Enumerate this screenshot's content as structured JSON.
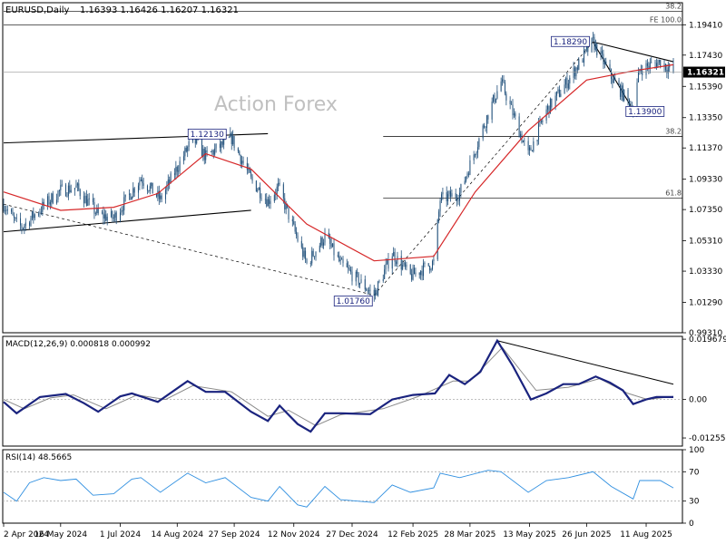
{
  "header": {
    "symbol": "EURUSD,Daily",
    "ohlc": "1.16393 1.16426 1.16207 1.16321"
  },
  "watermark": "Action Forex",
  "chart_data": [
    {
      "panel": "price",
      "type": "candlestick",
      "y_ticks": [
        "1.19410",
        "1.17430",
        "1.15390",
        "1.13350",
        "1.11370",
        "1.09330",
        "1.07350",
        "1.05310",
        "1.03330",
        "1.01290",
        "0.99310"
      ],
      "ylim": [
        0.9931,
        1.2085
      ],
      "current_price": "1.16321",
      "grid": false,
      "close_path": [
        [
          "2024-04-02",
          1.077
        ],
        [
          "2024-04-12",
          1.064
        ],
        [
          "2024-04-16",
          1.062
        ],
        [
          "2024-05-03",
          1.076
        ],
        [
          "2024-05-16",
          1.086
        ],
        [
          "2024-05-28",
          1.088
        ],
        [
          "2024-06-14",
          1.07
        ],
        [
          "2024-06-26",
          1.068
        ],
        [
          "2024-07-17",
          1.094
        ],
        [
          "2024-08-01",
          1.08
        ],
        [
          "2024-08-26",
          1.12
        ],
        [
          "2024-09-05",
          1.108
        ],
        [
          "2024-09-25",
          1.12
        ],
        [
          "2024-10-10",
          1.093
        ],
        [
          "2024-10-23",
          1.079
        ],
        [
          "2024-10-31",
          1.088
        ],
        [
          "2024-11-15",
          1.054
        ],
        [
          "2024-11-22",
          1.038
        ],
        [
          "2024-12-06",
          1.056
        ],
        [
          "2024-12-18",
          1.038
        ],
        [
          "2025-01-13",
          1.0176
        ],
        [
          "2025-01-27",
          1.045
        ],
        [
          "2025-02-10",
          1.03
        ],
        [
          "2025-02-28",
          1.039
        ],
        [
          "2025-03-05",
          1.08
        ],
        [
          "2025-03-20",
          1.084
        ],
        [
          "2025-04-11",
          1.136
        ],
        [
          "2025-04-21",
          1.157
        ],
        [
          "2025-05-12",
          1.109
        ],
        [
          "2025-05-26",
          1.138
        ],
        [
          "2025-06-12",
          1.158
        ],
        [
          "2025-07-01",
          1.1829
        ],
        [
          "2025-07-15",
          1.16
        ],
        [
          "2025-08-01",
          1.139
        ],
        [
          "2025-08-06",
          1.165
        ],
        [
          "2025-08-22",
          1.17
        ],
        [
          "2025-09-01",
          1.1632
        ]
      ],
      "sma_path": [
        [
          "2024-04-02",
          1.085
        ],
        [
          "2024-05-16",
          1.073
        ],
        [
          "2024-06-26",
          1.075
        ],
        [
          "2024-07-30",
          1.084
        ],
        [
          "2024-09-05",
          1.11
        ],
        [
          "2024-10-10",
          1.1
        ],
        [
          "2024-11-22",
          1.064
        ],
        [
          "2025-01-13",
          1.04
        ],
        [
          "2025-02-28",
          1.043
        ],
        [
          "2025-04-01",
          1.085
        ],
        [
          "2025-05-12",
          1.125
        ],
        [
          "2025-06-26",
          1.158
        ],
        [
          "2025-08-01",
          1.164
        ],
        [
          "2025-09-01",
          1.168
        ]
      ],
      "levels": [
        {
          "label": "38.2",
          "value": 1.203,
          "from": "2024-04-02"
        },
        {
          "label": "FE 100.0",
          "value": 1.1941,
          "from": "2024-04-02"
        },
        {
          "label": "38.2",
          "value": 1.1213,
          "from": "2025-01-20"
        },
        {
          "label": "61.8",
          "value": 1.081,
          "from": "2025-01-20"
        }
      ],
      "annotations": [
        {
          "text": "1.12130",
          "x": "2024-08-28",
          "y": 1.1213
        },
        {
          "text": "1.01760",
          "x": "2025-01-13",
          "y": 1.0176
        },
        {
          "text": "1.18290",
          "x": "2025-07-01",
          "y": 1.1829
        },
        {
          "text": "1.13900",
          "x": "2025-08-01",
          "y": 1.139
        }
      ],
      "trendlines": [
        {
          "style": "solid",
          "points": [
            [
              "2024-04-02",
              1.117
            ],
            [
              "2024-10-23",
              1.123
            ]
          ]
        },
        {
          "style": "solid",
          "points": [
            [
              "2024-04-02",
              1.059
            ],
            [
              "2024-10-10",
              1.073
            ]
          ]
        },
        {
          "style": "dashed",
          "points": [
            [
              "2024-04-02",
              1.077
            ],
            [
              "2025-01-13",
              1.0176
            ]
          ]
        },
        {
          "style": "dashed",
          "points": [
            [
              "2025-01-13",
              1.0176
            ],
            [
              "2025-07-01",
              1.1829
            ]
          ]
        },
        {
          "style": "solid",
          "points": [
            [
              "2025-07-01",
              1.1829
            ],
            [
              "2025-09-01",
              1.17
            ]
          ]
        },
        {
          "style": "solid",
          "points": [
            [
              "2025-07-01",
              1.1829
            ],
            [
              "2025-08-04",
              1.134
            ]
          ]
        }
      ]
    },
    {
      "panel": "macd",
      "type": "line",
      "title": "MACD(12,26,9) 0.000818 0.000992",
      "y_ticks": [
        "0.019679",
        "0.00",
        "-0.012552"
      ],
      "ylim": [
        -0.0152,
        0.0206
      ],
      "macd_path": [
        [
          "2024-04-02",
          -0.0008
        ],
        [
          "2024-04-12",
          -0.0045
        ],
        [
          "2024-04-30",
          0.0008
        ],
        [
          "2024-05-20",
          0.0018
        ],
        [
          "2024-06-03",
          -0.0012
        ],
        [
          "2024-06-14",
          -0.004
        ],
        [
          "2024-07-01",
          0.001
        ],
        [
          "2024-07-10",
          0.002
        ],
        [
          "2024-07-30",
          -0.0008
        ],
        [
          "2024-08-22",
          0.006
        ],
        [
          "2024-09-05",
          0.0025
        ],
        [
          "2024-09-20",
          0.0025
        ],
        [
          "2024-10-10",
          -0.004
        ],
        [
          "2024-10-23",
          -0.007
        ],
        [
          "2024-11-01",
          -0.002
        ],
        [
          "2024-11-15",
          -0.008
        ],
        [
          "2024-11-25",
          -0.0105
        ],
        [
          "2024-12-06",
          -0.0045
        ],
        [
          "2024-12-18",
          -0.0045
        ],
        [
          "2025-01-10",
          -0.0048
        ],
        [
          "2025-01-27",
          0.0
        ],
        [
          "2025-02-12",
          0.0015
        ],
        [
          "2025-03-01",
          0.002
        ],
        [
          "2025-03-12",
          0.008
        ],
        [
          "2025-03-24",
          0.005
        ],
        [
          "2025-04-05",
          0.009
        ],
        [
          "2025-04-18",
          0.0192
        ],
        [
          "2025-04-30",
          0.011
        ],
        [
          "2025-05-14",
          0.0
        ],
        [
          "2025-05-26",
          0.002
        ],
        [
          "2025-06-08",
          0.005
        ],
        [
          "2025-06-20",
          0.005
        ],
        [
          "2025-07-03",
          0.0075
        ],
        [
          "2025-07-14",
          0.0055
        ],
        [
          "2025-07-24",
          0.003
        ],
        [
          "2025-08-01",
          -0.0015
        ],
        [
          "2025-08-11",
          0.0
        ],
        [
          "2025-08-19",
          0.0008
        ],
        [
          "2025-09-01",
          0.0008
        ]
      ],
      "signal_path": [
        [
          "2024-04-02",
          0.0
        ],
        [
          "2024-04-18",
          -0.003
        ],
        [
          "2024-05-08",
          0.0005
        ],
        [
          "2024-05-26",
          0.0015
        ],
        [
          "2024-06-20",
          -0.003
        ],
        [
          "2024-07-14",
          0.0015
        ],
        [
          "2024-08-05",
          0.0
        ],
        [
          "2024-08-26",
          0.0045
        ],
        [
          "2024-09-25",
          0.0025
        ],
        [
          "2024-10-23",
          -0.0055
        ],
        [
          "2024-11-08",
          -0.0035
        ],
        [
          "2024-11-29",
          -0.0085
        ],
        [
          "2024-12-18",
          -0.005
        ],
        [
          "2025-01-20",
          -0.003
        ],
        [
          "2025-02-15",
          0.0008
        ],
        [
          "2025-03-15",
          0.006
        ],
        [
          "2025-03-28",
          0.006
        ],
        [
          "2025-04-22",
          0.017
        ],
        [
          "2025-05-18",
          0.003
        ],
        [
          "2025-06-12",
          0.004
        ],
        [
          "2025-07-06",
          0.0068
        ],
        [
          "2025-07-28",
          0.002
        ],
        [
          "2025-08-12",
          0.0
        ],
        [
          "2025-09-01",
          0.001
        ]
      ],
      "trendlines": [
        {
          "style": "solid",
          "points": [
            [
              "2025-04-18",
              0.0192
            ],
            [
              "2025-09-01",
              0.005
            ]
          ]
        }
      ]
    },
    {
      "panel": "rsi",
      "type": "line",
      "title": "RSI(14) 48.5665",
      "y_ticks": [
        "100",
        "70",
        "30",
        "0"
      ],
      "ylim": [
        0,
        100
      ],
      "levels": [
        70,
        30
      ],
      "rsi_path": [
        [
          "2024-04-02",
          42
        ],
        [
          "2024-04-12",
          30
        ],
        [
          "2024-04-22",
          55
        ],
        [
          "2024-05-03",
          62
        ],
        [
          "2024-05-16",
          58
        ],
        [
          "2024-05-28",
          60
        ],
        [
          "2024-06-10",
          38
        ],
        [
          "2024-06-26",
          40
        ],
        [
          "2024-07-10",
          60
        ],
        [
          "2024-07-17",
          62
        ],
        [
          "2024-08-01",
          42
        ],
        [
          "2024-08-22",
          68
        ],
        [
          "2024-09-05",
          55
        ],
        [
          "2024-09-20",
          62
        ],
        [
          "2024-10-10",
          35
        ],
        [
          "2024-10-23",
          30
        ],
        [
          "2024-11-01",
          50
        ],
        [
          "2024-11-15",
          25
        ],
        [
          "2024-11-22",
          22
        ],
        [
          "2024-12-06",
          50
        ],
        [
          "2024-12-18",
          32
        ],
        [
          "2025-01-13",
          28
        ],
        [
          "2025-01-27",
          52
        ],
        [
          "2025-02-10",
          42
        ],
        [
          "2025-02-28",
          48
        ],
        [
          "2025-03-05",
          68
        ],
        [
          "2025-03-20",
          62
        ],
        [
          "2025-04-11",
          72
        ],
        [
          "2025-04-21",
          70
        ],
        [
          "2025-05-12",
          42
        ],
        [
          "2025-05-26",
          58
        ],
        [
          "2025-06-12",
          62
        ],
        [
          "2025-07-01",
          70
        ],
        [
          "2025-07-15",
          50
        ],
        [
          "2025-08-01",
          33
        ],
        [
          "2025-08-06",
          58
        ],
        [
          "2025-08-22",
          58
        ],
        [
          "2025-09-01",
          48
        ]
      ]
    }
  ],
  "x_axis": {
    "labels": [
      {
        "text": "2 Apr 2024",
        "date": "2024-04-02"
      },
      {
        "text": "16 May 2024",
        "date": "2024-05-16"
      },
      {
        "text": "1 Jul 2024",
        "date": "2024-07-01"
      },
      {
        "text": "14 Aug 2024",
        "date": "2024-08-14"
      },
      {
        "text": "27 Sep 2024",
        "date": "2024-09-27"
      },
      {
        "text": "12 Nov 2024",
        "date": "2024-11-12"
      },
      {
        "text": "27 Dec 2024",
        "date": "2024-12-27"
      },
      {
        "text": "12 Feb 2025",
        "date": "2025-02-12"
      },
      {
        "text": "28 Mar 2025",
        "date": "2025-03-28"
      },
      {
        "text": "13 May 2025",
        "date": "2025-05-13"
      },
      {
        "text": "26 Jun 2025",
        "date": "2025-06-26"
      },
      {
        "text": "11 Aug 2025",
        "date": "2025-08-11"
      }
    ]
  },
  "colors": {
    "candle": "#1f4f7a",
    "sma": "#d62728",
    "macd_line": "#1a237e",
    "signal_line": "#8a8a8a",
    "rsi_line": "#2f8fe0",
    "frame": "#000000",
    "watermark": "#c0c0c0",
    "price_tag_bg": "#000000",
    "price_tag_fg": "#ffffff"
  }
}
